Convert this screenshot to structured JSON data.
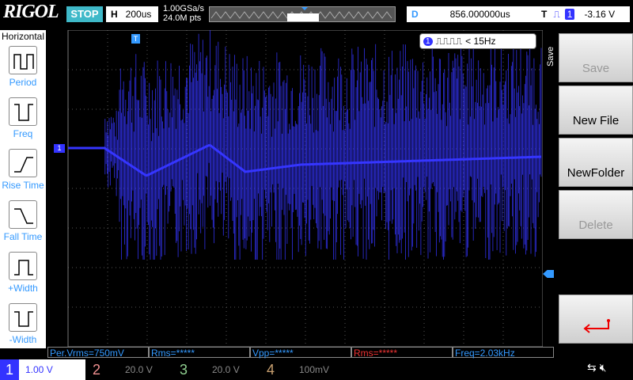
{
  "top_bar": {
    "brand": "RIGOL",
    "status": "STOP",
    "timebase_label": "H",
    "timebase": "200us",
    "sample_rate": "1.00GSa/s",
    "memory_depth": "24.0M pts",
    "delay_label": "D",
    "delay": "856.000000us",
    "trigger_label": "T",
    "trigger_source": "1",
    "trigger_level": "-3.16 V"
  },
  "left_menu": {
    "title": "Horizontal",
    "items": [
      "Period",
      "Freq",
      "Rise Time",
      "Fall Time",
      "+Width",
      "-Width"
    ]
  },
  "screen": {
    "trigger_marker": "T",
    "channel_marker": "1",
    "counter_source": "1",
    "counter_value": "< 15Hz"
  },
  "right_menu": {
    "title": "Save",
    "items": [
      "Save",
      "New File",
      "NewFolder",
      "Delete"
    ]
  },
  "measurements": [
    "Per.Vrms=750mV",
    "Rms=*****",
    "Vpp=*****",
    "Rms=*****",
    "Freq=2.03kHz"
  ],
  "channels": [
    {
      "number": "1",
      "scale": "1.00 V"
    },
    {
      "number": "2",
      "scale": "20.0 V"
    },
    {
      "number": "3",
      "scale": "20.0 V"
    },
    {
      "number": "4",
      "scale": "100mV"
    }
  ]
}
